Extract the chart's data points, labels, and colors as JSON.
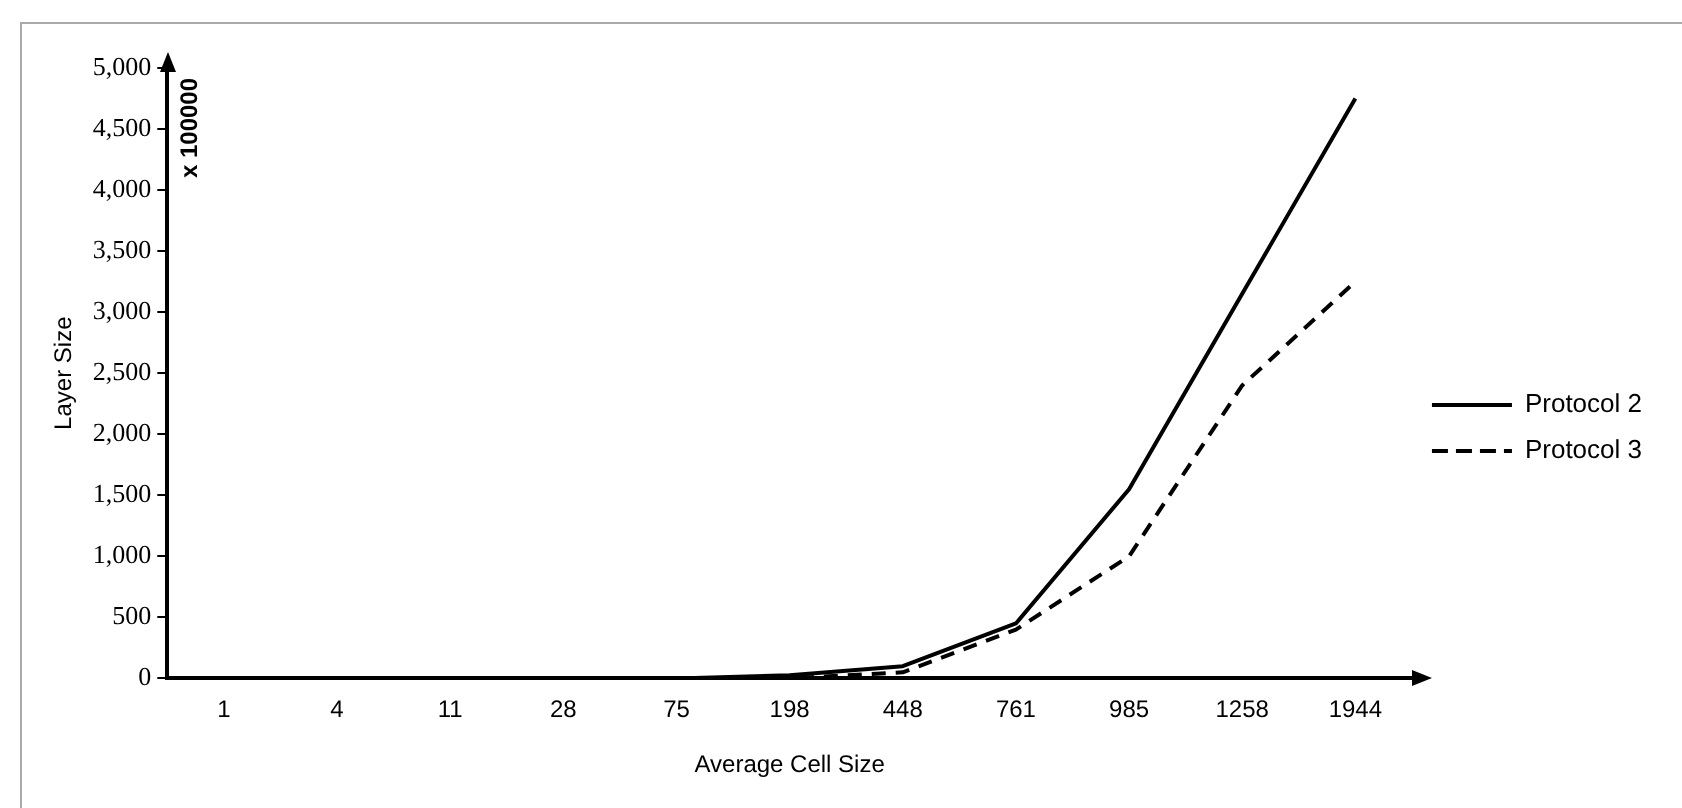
{
  "chart_data": {
    "type": "line",
    "xlabel": "Average Cell Size",
    "ylabel": "Layer Size",
    "annotations": [
      "x 100000"
    ],
    "categories": [
      "1",
      "4",
      "11",
      "28",
      "75",
      "198",
      "448",
      "761",
      "985",
      "1258",
      "1944"
    ],
    "series": [
      {
        "name": "Protocol 2",
        "color": "#000000",
        "line_style": "solid",
        "values": [
          0,
          0,
          0,
          0,
          0,
          25,
          100,
          450,
          1550,
          3150,
          4750
        ]
      },
      {
        "name": "Protocol 3",
        "color": "#000000",
        "line_style": "dashed",
        "values": [
          0,
          0,
          0,
          0,
          0,
          0,
          50,
          400,
          1000,
          2400,
          3250
        ]
      }
    ],
    "ylim": [
      0,
      5000
    ],
    "yticks": [
      {
        "value": 0,
        "label": "0"
      },
      {
        "value": 500,
        "label": "500"
      },
      {
        "value": 1000,
        "label": "1,000"
      },
      {
        "value": 1500,
        "label": "1,500"
      },
      {
        "value": 2000,
        "label": "2,000"
      },
      {
        "value": 2500,
        "label": "2,500"
      },
      {
        "value": 3000,
        "label": "3,000"
      },
      {
        "value": 3500,
        "label": "3,500"
      },
      {
        "value": 4000,
        "label": "4,000"
      },
      {
        "value": 4500,
        "label": "4,500"
      },
      {
        "value": 5000,
        "label": "5,000"
      }
    ],
    "grid": false,
    "legend": "right",
    "marker": "none"
  }
}
